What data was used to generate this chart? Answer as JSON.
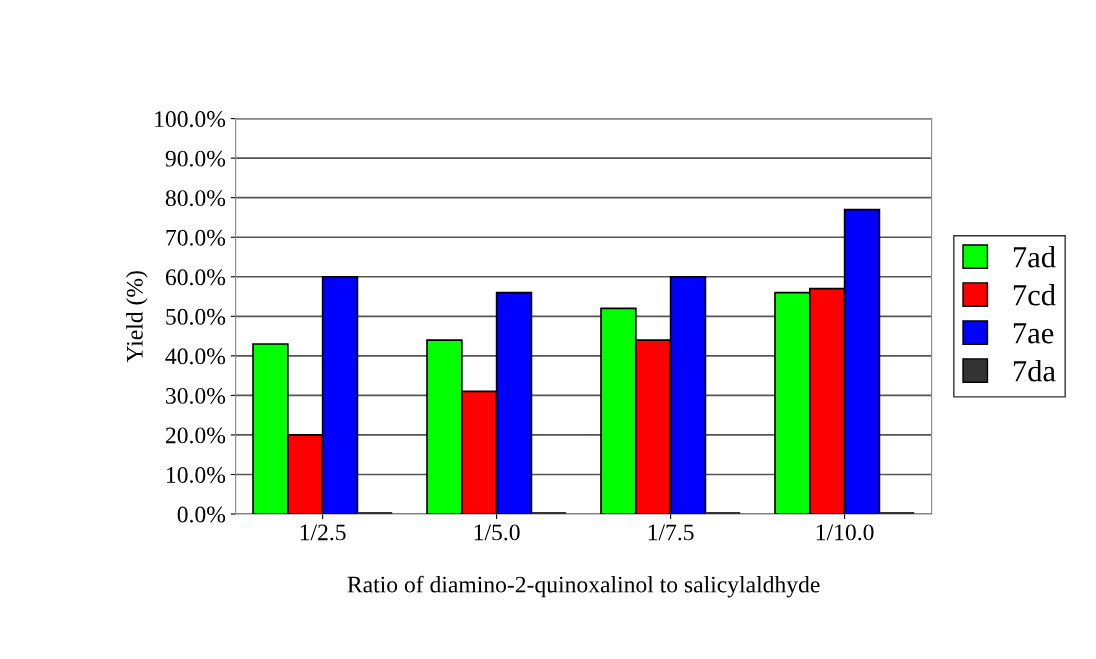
{
  "chart_data": {
    "type": "bar",
    "xlabel": "Ratio of diamino-2-quinoxalinol to salicylaldhyde",
    "ylabel": "Yield (%)",
    "categories": [
      "1/2.5",
      "1/5.0",
      "1/7.5",
      "1/10.0"
    ],
    "series": [
      {
        "name": "7ad",
        "color": "#00ff00",
        "values": [
          43,
          44,
          52,
          56
        ]
      },
      {
        "name": "7cd",
        "color": "#ff0000",
        "values": [
          20,
          31,
          44,
          57
        ]
      },
      {
        "name": "7ae",
        "color": "#0000ff",
        "values": [
          60,
          56,
          60,
          77
        ]
      },
      {
        "name": "7da",
        "color": "#333333",
        "values": [
          0,
          0,
          0,
          0
        ]
      }
    ],
    "ylim": [
      0,
      100
    ],
    "yticks": [
      {
        "value": 0,
        "label": "0.0%"
      },
      {
        "value": 10,
        "label": "10.0%"
      },
      {
        "value": 20,
        "label": "20.0%"
      },
      {
        "value": 30,
        "label": "30.0%"
      },
      {
        "value": 40,
        "label": "40.0%"
      },
      {
        "value": 50,
        "label": "50.0%"
      },
      {
        "value": 60,
        "label": "60.0%"
      },
      {
        "value": 70,
        "label": "70.0%"
      },
      {
        "value": 80,
        "label": "80.0%"
      },
      {
        "value": 90,
        "label": "90.0%"
      },
      {
        "value": 100,
        "label": "100.0%"
      }
    ],
    "grid": "y",
    "legend": "right"
  }
}
